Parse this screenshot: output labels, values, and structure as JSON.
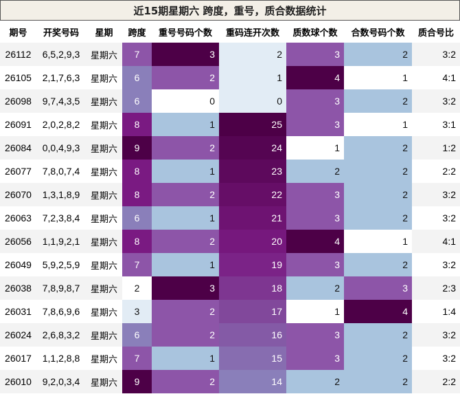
{
  "title": "近15期星期六 跨度，重号，质合数据统计",
  "columns": [
    "期号",
    "开奖号码",
    "星期",
    "跨度",
    "重号号码个数",
    "重码连开次数",
    "质数球个数",
    "合数号码个数",
    "质合号比"
  ],
  "heatmap_colors": {
    "dark": "#4d0047",
    "purple": "#7a1a82",
    "mid_purple": "#8d55a8",
    "light_purple": "#8a7fba",
    "light_blue": "#a9c4de",
    "pale_blue": "#e2ecf5",
    "white": "#ffffff"
  },
  "rows": [
    {
      "issue": "26112",
      "numbers": "6,5,2,9,3",
      "weekday": "星期六",
      "span": "7",
      "repeat_count": "3",
      "repeat_streak": "2",
      "prime_count": "3",
      "composite_count": "2",
      "ratio": "3:2"
    },
    {
      "issue": "26105",
      "numbers": "2,1,7,6,3",
      "weekday": "星期六",
      "span": "6",
      "repeat_count": "2",
      "repeat_streak": "1",
      "prime_count": "4",
      "composite_count": "1",
      "ratio": "4:1"
    },
    {
      "issue": "26098",
      "numbers": "9,7,4,3,5",
      "weekday": "星期六",
      "span": "6",
      "repeat_count": "0",
      "repeat_streak": "0",
      "prime_count": "3",
      "composite_count": "2",
      "ratio": "3:2"
    },
    {
      "issue": "26091",
      "numbers": "2,0,2,8,2",
      "weekday": "星期六",
      "span": "8",
      "repeat_count": "1",
      "repeat_streak": "25",
      "prime_count": "3",
      "composite_count": "1",
      "ratio": "3:1"
    },
    {
      "issue": "26084",
      "numbers": "0,0,4,9,3",
      "weekday": "星期六",
      "span": "9",
      "repeat_count": "2",
      "repeat_streak": "24",
      "prime_count": "1",
      "composite_count": "2",
      "ratio": "1:2"
    },
    {
      "issue": "26077",
      "numbers": "7,8,0,7,4",
      "weekday": "星期六",
      "span": "8",
      "repeat_count": "1",
      "repeat_streak": "23",
      "prime_count": "2",
      "composite_count": "2",
      "ratio": "2:2"
    },
    {
      "issue": "26070",
      "numbers": "1,3,1,8,9",
      "weekday": "星期六",
      "span": "8",
      "repeat_count": "2",
      "repeat_streak": "22",
      "prime_count": "3",
      "composite_count": "2",
      "ratio": "3:2"
    },
    {
      "issue": "26063",
      "numbers": "7,2,3,8,4",
      "weekday": "星期六",
      "span": "6",
      "repeat_count": "1",
      "repeat_streak": "21",
      "prime_count": "3",
      "composite_count": "2",
      "ratio": "3:2"
    },
    {
      "issue": "26056",
      "numbers": "1,1,9,2,1",
      "weekday": "星期六",
      "span": "8",
      "repeat_count": "2",
      "repeat_streak": "20",
      "prime_count": "4",
      "composite_count": "1",
      "ratio": "4:1"
    },
    {
      "issue": "26049",
      "numbers": "5,9,2,5,9",
      "weekday": "星期六",
      "span": "7",
      "repeat_count": "1",
      "repeat_streak": "19",
      "prime_count": "3",
      "composite_count": "2",
      "ratio": "3:2"
    },
    {
      "issue": "26038",
      "numbers": "7,8,9,8,7",
      "weekday": "星期六",
      "span": "2",
      "repeat_count": "3",
      "repeat_streak": "18",
      "prime_count": "2",
      "composite_count": "3",
      "ratio": "2:3"
    },
    {
      "issue": "26031",
      "numbers": "7,8,6,9,6",
      "weekday": "星期六",
      "span": "3",
      "repeat_count": "2",
      "repeat_streak": "17",
      "prime_count": "1",
      "composite_count": "4",
      "ratio": "1:4"
    },
    {
      "issue": "26024",
      "numbers": "2,6,8,3,2",
      "weekday": "星期六",
      "span": "6",
      "repeat_count": "2",
      "repeat_streak": "16",
      "prime_count": "3",
      "composite_count": "2",
      "ratio": "3:2"
    },
    {
      "issue": "26017",
      "numbers": "1,1,2,8,8",
      "weekday": "星期六",
      "span": "7",
      "repeat_count": "1",
      "repeat_streak": "15",
      "prime_count": "3",
      "composite_count": "2",
      "ratio": "3:2"
    },
    {
      "issue": "26010",
      "numbers": "9,2,0,3,4",
      "weekday": "星期六",
      "span": "9",
      "repeat_count": "2",
      "repeat_streak": "14",
      "prime_count": "2",
      "composite_count": "2",
      "ratio": "2:2"
    }
  ]
}
